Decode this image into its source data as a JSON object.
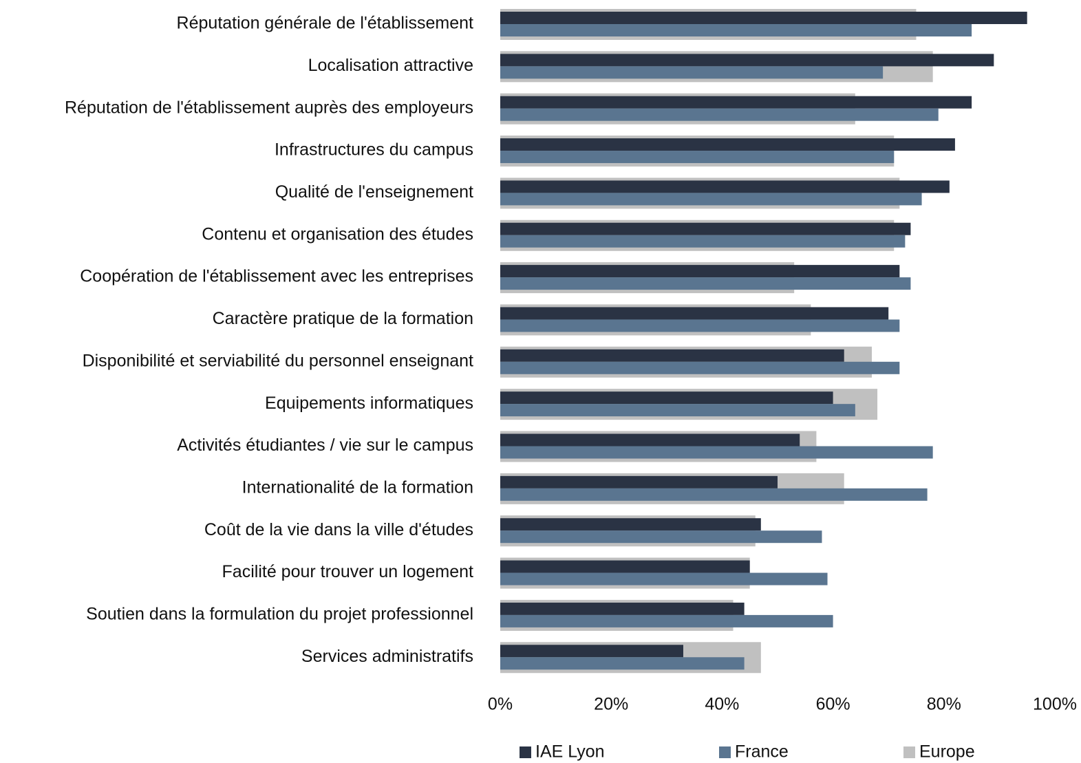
{
  "chart_data": {
    "type": "bar",
    "orientation": "horizontal",
    "categories": [
      "Réputation générale de l'établissement",
      "Localisation attractive",
      "Réputation de l'établissement auprès des employeurs",
      "Infrastructures du campus",
      "Qualité de l'enseignement",
      "Contenu et organisation des études",
      "Coopération de l'établissement avec les entreprises",
      "Caractère pratique de la formation",
      "Disponibilité et serviabilité du personnel enseignant",
      "Equipements informatiques",
      "Activités étudiantes / vie sur le campus",
      "Internationalité de la formation",
      "Coût de la vie dans la ville d'études",
      "Facilité pour trouver un logement",
      "Soutien dans la formulation du projet professionnel",
      "Services administratifs"
    ],
    "series": [
      {
        "name": "IAE Lyon",
        "color": "#2a3344",
        "values": [
          95,
          89,
          85,
          82,
          81,
          74,
          72,
          70,
          62,
          60,
          54,
          50,
          47,
          45,
          44,
          33
        ]
      },
      {
        "name": "France",
        "color": "#5a7590",
        "values": [
          85,
          69,
          79,
          71,
          76,
          73,
          74,
          72,
          72,
          64,
          78,
          77,
          58,
          59,
          60,
          44
        ]
      },
      {
        "name": "Europe",
        "color": "#c0c0c0",
        "values": [
          75,
          78,
          64,
          71,
          72,
          71,
          53,
          56,
          67,
          68,
          57,
          62,
          46,
          45,
          42,
          47
        ]
      }
    ],
    "xlim": [
      0,
      100
    ],
    "xticks": [
      {
        "value": 0,
        "label": "0%"
      },
      {
        "value": 20,
        "label": "20%"
      },
      {
        "value": 40,
        "label": "40%"
      },
      {
        "value": 60,
        "label": "60%"
      },
      {
        "value": 80,
        "label": "80%"
      },
      {
        "value": 100,
        "label": "100%"
      }
    ],
    "legend": "bottom"
  }
}
